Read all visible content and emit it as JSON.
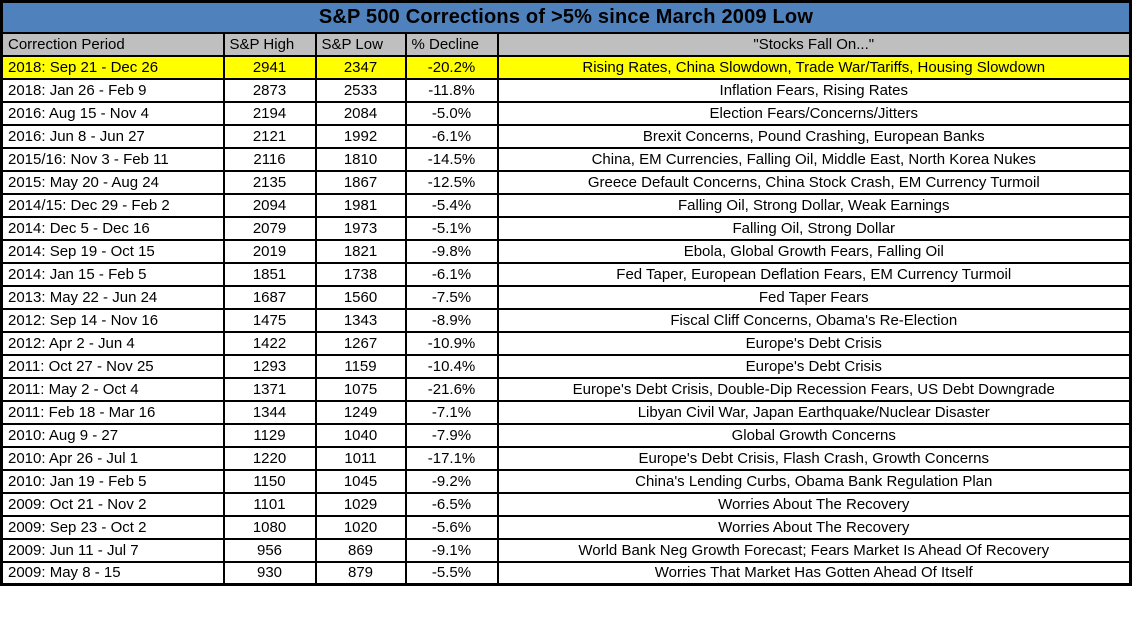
{
  "colors": {
    "title_background": "#4f81bd",
    "header_background": "#bfbfbf",
    "highlight_background": "#ffff00",
    "border": "#000000",
    "text": "#000000"
  },
  "chart_data": {
    "type": "table",
    "title": "S&P 500 Corrections of >5% since March 2009 Low",
    "columns": [
      "Correction Period",
      "S&P High",
      "S&P Low",
      "% Decline",
      "\"Stocks Fall On...\""
    ],
    "highlighted_row_index": 0,
    "rows": [
      [
        "2018: Sep 21 - Dec 26",
        "2941",
        "2347",
        "-20.2%",
        "Rising Rates, China Slowdown, Trade War/Tariffs, Housing Slowdown"
      ],
      [
        "2018: Jan 26 - Feb 9",
        "2873",
        "2533",
        "-11.8%",
        "Inflation Fears, Rising Rates"
      ],
      [
        "2016: Aug 15 - Nov 4",
        "2194",
        "2084",
        "-5.0%",
        "Election Fears/Concerns/Jitters"
      ],
      [
        "2016: Jun 8 - Jun 27",
        "2121",
        "1992",
        "-6.1%",
        "Brexit Concerns, Pound Crashing, European Banks"
      ],
      [
        "2015/16: Nov 3 - Feb 11",
        "2116",
        "1810",
        "-14.5%",
        "China, EM Currencies, Falling Oil, Middle East, North Korea Nukes"
      ],
      [
        "2015: May 20 - Aug 24",
        "2135",
        "1867",
        "-12.5%",
        "Greece Default Concerns, China Stock Crash, EM Currency Turmoil"
      ],
      [
        "2014/15: Dec 29 - Feb 2",
        "2094",
        "1981",
        "-5.4%",
        "Falling Oil, Strong Dollar, Weak Earnings"
      ],
      [
        "2014: Dec 5 - Dec 16",
        "2079",
        "1973",
        "-5.1%",
        "Falling Oil, Strong Dollar"
      ],
      [
        "2014: Sep 19 - Oct 15",
        "2019",
        "1821",
        "-9.8%",
        "Ebola, Global Growth Fears, Falling Oil"
      ],
      [
        "2014: Jan 15 - Feb 5",
        "1851",
        "1738",
        "-6.1%",
        "Fed Taper, European Deflation Fears, EM Currency Turmoil"
      ],
      [
        "2013: May 22 - Jun 24",
        "1687",
        "1560",
        "-7.5%",
        "Fed Taper Fears"
      ],
      [
        "2012: Sep 14 - Nov 16",
        "1475",
        "1343",
        "-8.9%",
        "Fiscal Cliff Concerns, Obama's Re-Election"
      ],
      [
        "2012: Apr 2 - Jun 4",
        "1422",
        "1267",
        "-10.9%",
        "Europe's Debt Crisis"
      ],
      [
        "2011: Oct 27 - Nov 25",
        "1293",
        "1159",
        "-10.4%",
        "Europe's Debt Crisis"
      ],
      [
        "2011: May 2 - Oct 4",
        "1371",
        "1075",
        "-21.6%",
        "Europe's Debt Crisis, Double-Dip Recession Fears, US Debt Downgrade"
      ],
      [
        "2011: Feb 18 - Mar 16",
        "1344",
        "1249",
        "-7.1%",
        "Libyan Civil War, Japan Earthquake/Nuclear Disaster"
      ],
      [
        "2010: Aug 9 - 27",
        "1129",
        "1040",
        "-7.9%",
        "Global Growth Concerns"
      ],
      [
        "2010: Apr 26 - Jul 1",
        "1220",
        "1011",
        "-17.1%",
        "Europe's Debt Crisis, Flash Crash, Growth Concerns"
      ],
      [
        "2010: Jan 19 - Feb 5",
        "1150",
        "1045",
        "-9.2%",
        "China's Lending Curbs, Obama Bank Regulation Plan"
      ],
      [
        "2009: Oct 21 - Nov 2",
        "1101",
        "1029",
        "-6.5%",
        "Worries About The Recovery"
      ],
      [
        "2009: Sep 23 - Oct 2",
        "1080",
        "1020",
        "-5.6%",
        "Worries About The Recovery"
      ],
      [
        "2009: Jun 11 - Jul 7",
        "956",
        "869",
        "-9.1%",
        "World Bank Neg Growth Forecast; Fears Market Is Ahead Of Recovery"
      ],
      [
        "2009: May 8 - 15",
        "930",
        "879",
        "-5.5%",
        "Worries That Market Has Gotten Ahead Of Itself"
      ]
    ]
  }
}
